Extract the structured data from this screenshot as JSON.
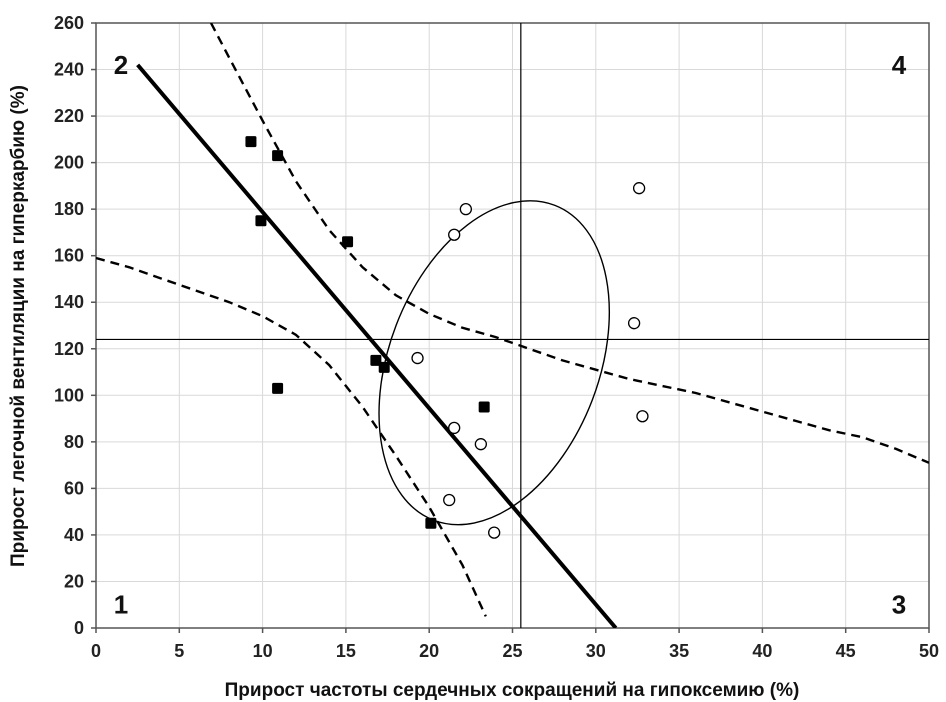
{
  "chart_data": {
    "type": "scatter",
    "xlabel": "Прирост частоты сердечных сокращений на гипоксемию (%)",
    "ylabel": "Прирост легочной вентиляции на гиперкарбию (%)",
    "xlim": [
      0,
      50
    ],
    "ylim": [
      0,
      260
    ],
    "x_ticks": [
      0,
      5,
      10,
      15,
      20,
      25,
      30,
      35,
      40,
      45,
      50
    ],
    "y_ticks": [
      0,
      20,
      40,
      60,
      80,
      100,
      120,
      140,
      160,
      180,
      200,
      220,
      240,
      260
    ],
    "grid": true,
    "colors": {
      "ink": "#000000",
      "grid": "#d9d9d9",
      "frame": "#555555"
    },
    "series": [
      {
        "marker": "filled-square",
        "points": [
          [
            9.3,
            209
          ],
          [
            10.9,
            203
          ],
          [
            9.9,
            175
          ],
          [
            15.1,
            166
          ],
          [
            16.8,
            115
          ],
          [
            17.3,
            112
          ],
          [
            10.9,
            103
          ],
          [
            23.3,
            95
          ],
          [
            20.1,
            45
          ]
        ]
      },
      {
        "marker": "open-circle",
        "points": [
          [
            32.6,
            189
          ],
          [
            22.2,
            180
          ],
          [
            21.5,
            169
          ],
          [
            32.3,
            131
          ],
          [
            19.3,
            116
          ],
          [
            32.8,
            91
          ],
          [
            21.5,
            86
          ],
          [
            23.1,
            79
          ],
          [
            21.2,
            55
          ],
          [
            23.9,
            41
          ]
        ]
      }
    ],
    "regression_line": {
      "from": [
        2.5,
        242
      ],
      "to": [
        31.2,
        0
      ]
    },
    "confidence_upper": [
      [
        6.9,
        260
      ],
      [
        8,
        245
      ],
      [
        10,
        218
      ],
      [
        12,
        192
      ],
      [
        14,
        171
      ],
      [
        16,
        155
      ],
      [
        18,
        143
      ],
      [
        20,
        135
      ],
      [
        22,
        129
      ],
      [
        24,
        125
      ],
      [
        26,
        120
      ],
      [
        28,
        115
      ],
      [
        30,
        111
      ],
      [
        32,
        107
      ],
      [
        34,
        104
      ],
      [
        36,
        101
      ],
      [
        38,
        97
      ],
      [
        40,
        93
      ],
      [
        42,
        89
      ],
      [
        44,
        85
      ],
      [
        46,
        82
      ],
      [
        48,
        77
      ],
      [
        50,
        71
      ]
    ],
    "confidence_lower": [
      [
        0,
        159
      ],
      [
        2,
        155
      ],
      [
        4,
        150
      ],
      [
        6,
        145
      ],
      [
        8,
        140
      ],
      [
        10,
        134
      ],
      [
        12,
        126
      ],
      [
        14,
        113
      ],
      [
        16,
        95
      ],
      [
        18,
        74
      ],
      [
        20,
        52
      ],
      [
        22,
        27
      ],
      [
        23.4,
        5
      ]
    ],
    "ellipse": {
      "cx": 23.9,
      "cy": 114,
      "rx": 6.3,
      "ry": 72.5,
      "rotation_deg": 21
    },
    "reference_lines": {
      "x": 25.5,
      "y": 124
    },
    "quadrant_labels": [
      {
        "text": "1",
        "x": 1.5,
        "y": 10
      },
      {
        "text": "2",
        "x": 1.5,
        "y": 242
      },
      {
        "text": "3",
        "x": 48.2,
        "y": 10
      },
      {
        "text": "4",
        "x": 48.2,
        "y": 242
      }
    ]
  }
}
